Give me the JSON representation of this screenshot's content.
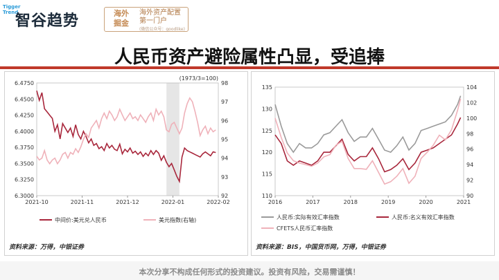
{
  "header": {
    "logo_side": "Tigger Trend",
    "logo_text": "智谷趋势",
    "badge_left": "海外\n掘金",
    "badge_right_1": "海外资产配置",
    "badge_right_2": "第一门户",
    "badge_small": "(微信公众号：goodlike)"
  },
  "main": {
    "title": "人民币资产避险属性凸显，受追捧"
  },
  "footer": {
    "disclaimer": "本次分享不构成任何形式的投资建议。投资有风险，交易需谨慎！"
  },
  "colors": {
    "dark_red": "#a8263b",
    "pink": "#efb1b9",
    "gray": "#9a9a9a",
    "accent": "#c0392b"
  },
  "chart_data": [
    {
      "type": "line",
      "title": "",
      "note": "(1973/3=100)",
      "x_ticks": [
        "2021-10",
        "2021-11",
        "2021-12",
        "2022-01",
        "2022-02"
      ],
      "y_left_ticks": [
        "6.4750",
        "6.4500",
        "6.4250",
        "6.4000",
        "6.3750",
        "6.3500",
        "6.3250",
        "6.3000"
      ],
      "y_right_ticks": [
        "98",
        "97",
        "96",
        "95",
        "94",
        "93",
        "92"
      ],
      "y_left_range": [
        6.3,
        6.475
      ],
      "y_right_range": [
        92,
        98
      ],
      "x_range": [
        0,
        140
      ],
      "shaded_region": [
        100,
        110
      ],
      "series": [
        {
          "name": "中间价:美元兑人民币",
          "axis": "left",
          "color": "#a8263b",
          "x": [
            0,
            2,
            4,
            6,
            8,
            10,
            12,
            14,
            16,
            18,
            20,
            22,
            24,
            26,
            28,
            30,
            32,
            34,
            36,
            38,
            40,
            42,
            44,
            46,
            48,
            50,
            52,
            54,
            56,
            58,
            60,
            62,
            64,
            66,
            68,
            70,
            72,
            74,
            76,
            78,
            80,
            82,
            84,
            86,
            88,
            90,
            92,
            94,
            96,
            98,
            100,
            102,
            104,
            106,
            108,
            110,
            112,
            114,
            116,
            118,
            120,
            122,
            124,
            126,
            128,
            130,
            132,
            134,
            136,
            138
          ],
          "y": [
            6.463,
            6.448,
            6.46,
            6.435,
            6.43,
            6.425,
            6.42,
            6.4,
            6.41,
            6.388,
            6.412,
            6.405,
            6.398,
            6.405,
            6.392,
            6.41,
            6.395,
            6.388,
            6.4,
            6.392,
            6.382,
            6.388,
            6.378,
            6.381,
            6.373,
            6.376,
            6.37,
            6.381,
            6.374,
            6.378,
            6.372,
            6.37,
            6.38,
            6.365,
            6.372,
            6.368,
            6.374,
            6.366,
            6.369,
            6.364,
            6.368,
            6.361,
            6.366,
            6.362,
            6.37,
            6.364,
            6.37,
            6.366,
            6.355,
            6.362,
            6.352,
            6.345,
            6.35,
            6.34,
            6.33,
            6.322,
            6.36,
            6.374,
            6.37,
            6.368,
            6.366,
            6.364,
            6.362,
            6.36,
            6.365,
            6.368,
            6.365,
            6.362,
            6.368,
            6.367
          ]
        },
        {
          "name": "美元指数(右轴)",
          "axis": "right",
          "color": "#efb1b9",
          "x": [
            0,
            2,
            4,
            6,
            8,
            10,
            12,
            14,
            16,
            18,
            20,
            22,
            24,
            26,
            28,
            30,
            32,
            34,
            36,
            38,
            40,
            42,
            44,
            46,
            48,
            50,
            52,
            54,
            56,
            58,
            60,
            62,
            64,
            66,
            68,
            70,
            72,
            74,
            76,
            78,
            80,
            82,
            84,
            86,
            88,
            90,
            92,
            94,
            96,
            98,
            100,
            102,
            104,
            106,
            108,
            110,
            112,
            114,
            116,
            118,
            120,
            122,
            124,
            126,
            128,
            130,
            132,
            134,
            136,
            138
          ],
          "y": [
            94.1,
            93.9,
            94.0,
            94.4,
            93.9,
            93.7,
            93.9,
            94.0,
            93.7,
            93.9,
            94.2,
            94.3,
            94.0,
            94.3,
            94.2,
            94.5,
            94.3,
            94.6,
            95.0,
            95.3,
            95.1,
            95.6,
            95.8,
            96.0,
            95.6,
            96.1,
            96.4,
            96.1,
            96.5,
            96.3,
            96.0,
            96.2,
            96.6,
            96.3,
            96.0,
            96.2,
            96.4,
            96.1,
            96.2,
            96.0,
            96.3,
            96.1,
            95.9,
            96.2,
            96.4,
            96.0,
            96.6,
            96.3,
            96.5,
            96.2,
            95.5,
            95.4,
            95.8,
            95.9,
            95.6,
            95.3,
            95.6,
            96.4,
            96.9,
            97.2,
            97.0,
            96.5,
            95.9,
            95.2,
            95.5,
            95.7,
            95.3,
            95.6,
            95.4,
            95.5
          ]
        }
      ],
      "source": "资料来源：万得，中银证券"
    },
    {
      "type": "line",
      "title": "",
      "x_ticks": [
        "2016",
        "2017",
        "2018",
        "2019",
        "2020",
        "2021"
      ],
      "x_range": [
        2016,
        2022.2
      ],
      "y_left_ticks": [
        "135",
        "130",
        "125",
        "120",
        "115",
        "110"
      ],
      "y_right_ticks": [
        "104",
        "102",
        "100",
        "98",
        "96",
        "94",
        "92",
        "90"
      ],
      "y_left_range": [
        110,
        135
      ],
      "y_right_range": [
        90,
        104
      ],
      "series": [
        {
          "name": "人民币:实际有效汇率指数",
          "axis": "left",
          "color": "#9a9a9a",
          "x": [
            2016,
            2016.2,
            2016.4,
            2016.6,
            2016.8,
            2017,
            2017.2,
            2017.4,
            2017.6,
            2017.8,
            2018,
            2018.2,
            2018.4,
            2018.6,
            2018.8,
            2019,
            2019.2,
            2019.4,
            2019.6,
            2019.8,
            2020,
            2020.2,
            2020.4,
            2020.6,
            2020.8,
            2021,
            2021.2,
            2021.4,
            2021.6,
            2021.8,
            2022,
            2022.1
          ],
          "y": [
            131,
            126,
            122,
            120,
            122,
            121,
            121,
            122,
            124,
            124.5,
            126,
            127.5,
            124.5,
            122.5,
            123.5,
            123.5,
            125.5,
            123,
            120.5,
            120,
            121.5,
            123.5,
            120.5,
            122,
            125,
            125.5,
            126,
            126.5,
            127,
            128.5,
            131,
            133
          ]
        },
        {
          "name": "人民币:名义有效汇率指数",
          "axis": "left",
          "color": "#a8263b",
          "x": [
            2016,
            2016.2,
            2016.4,
            2016.6,
            2016.8,
            2017,
            2017.2,
            2017.4,
            2017.6,
            2017.8,
            2018,
            2018.2,
            2018.4,
            2018.6,
            2018.8,
            2019,
            2019.2,
            2019.4,
            2019.6,
            2019.8,
            2020,
            2020.2,
            2020.4,
            2020.6,
            2020.8,
            2021,
            2021.2,
            2021.4,
            2021.6,
            2021.8,
            2022,
            2022.1
          ],
          "y": [
            124,
            122,
            118,
            117,
            118,
            117.5,
            117,
            118,
            120,
            120,
            121.5,
            123,
            119.5,
            118,
            119,
            119,
            121,
            118.5,
            115.5,
            116,
            117,
            118.5,
            116,
            117.5,
            120,
            120.5,
            121,
            122,
            123,
            124,
            126.5,
            128
          ]
        },
        {
          "name": "CFETS人民币汇率指数",
          "axis": "right",
          "color": "#efb1b9",
          "x": [
            2016,
            2016.2,
            2016.4,
            2016.6,
            2016.8,
            2017,
            2017.2,
            2017.4,
            2017.6,
            2017.8,
            2018,
            2018.2,
            2018.4,
            2018.6,
            2018.8,
            2019,
            2019.2,
            2019.4,
            2019.6,
            2019.8,
            2020,
            2020.2,
            2020.4,
            2020.6,
            2020.8,
            2021,
            2021.2,
            2021.4,
            2021.6,
            2021.8,
            2022,
            2022.1
          ],
          "y": [
            100,
            97.5,
            95.5,
            94.5,
            94.2,
            94.0,
            93.8,
            94.2,
            95.0,
            95.3,
            96.5,
            97.0,
            94.8,
            93.5,
            93.5,
            93.4,
            94.5,
            93.0,
            91.5,
            91.8,
            92.5,
            93.5,
            91.6,
            92.5,
            94.8,
            95.6,
            96.5,
            97.8,
            97.2,
            98.5,
            101.0,
            102.5
          ]
        }
      ],
      "source": "资料来源：BIS，中国货币网，万得，中银证券"
    }
  ]
}
